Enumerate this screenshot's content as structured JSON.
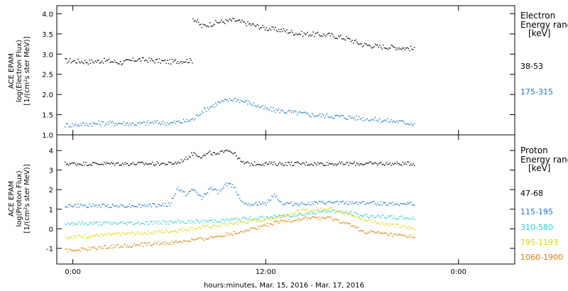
{
  "chart_data": [
    {
      "type": "scatter",
      "panel": "electron",
      "ylabel_lines": [
        "ACE EPAM",
        "log(Electron Flux)",
        "[1/(cm²s ster MeV)]"
      ],
      "ylim": [
        1.0,
        4.2
      ],
      "yticks": [
        "1.0",
        "1.5",
        "2.0",
        "2.5",
        "3.0",
        "3.5",
        "4.0"
      ],
      "yticks_values": [
        1.0,
        1.5,
        2.0,
        2.5,
        3.0,
        3.5,
        4.0
      ],
      "legend": {
        "lines": [
          "Electron",
          "Energy ranges",
          "[keV]"
        ]
      },
      "series": [
        {
          "name": "38-53",
          "color": "#000000",
          "x_hours": [
            -0.5,
            1,
            2,
            3,
            4,
            5,
            6,
            7,
            7.4,
            7.45,
            8,
            9,
            10,
            11,
            12,
            13,
            14,
            15,
            16,
            17,
            18,
            19,
            20,
            21,
            21.3
          ],
          "y": [
            2.85,
            2.82,
            2.85,
            2.8,
            2.88,
            2.85,
            2.82,
            2.85,
            2.85,
            3.9,
            3.7,
            3.8,
            3.85,
            3.75,
            3.65,
            3.6,
            3.52,
            3.5,
            3.48,
            3.4,
            3.25,
            3.2,
            3.18,
            3.15,
            3.12
          ]
        },
        {
          "name": "175-315",
          "color": "#1f77d0",
          "x_hours": [
            -0.5,
            1,
            2,
            3,
            4,
            5,
            6,
            7,
            7.5,
            8,
            9,
            10,
            11,
            12,
            13,
            14,
            15,
            16,
            17,
            18,
            19,
            20,
            21,
            21.3
          ],
          "y": [
            1.25,
            1.28,
            1.3,
            1.3,
            1.28,
            1.32,
            1.3,
            1.35,
            1.4,
            1.6,
            1.8,
            1.9,
            1.8,
            1.65,
            1.6,
            1.55,
            1.5,
            1.48,
            1.45,
            1.42,
            1.38,
            1.35,
            1.3,
            1.3
          ]
        }
      ]
    },
    {
      "type": "scatter",
      "panel": "proton",
      "xlabel": "hours:minutes, Mar. 15, 2016 - Mar. 17, 2016",
      "ylabel_lines": [
        "ACE EPAM",
        "log(Proton Flux)",
        "[1/(cm²s ster MeV)]"
      ],
      "ylim": [
        -1.8,
        4.8
      ],
      "yticks": [
        "-1",
        "0",
        "1",
        "2",
        "3",
        "4"
      ],
      "yticks_values": [
        -1,
        0,
        1,
        2,
        3,
        4
      ],
      "xlim": [
        -1,
        27.5
      ],
      "xticks": [
        "0:00",
        "12:00",
        "0:00"
      ],
      "xticks_values": [
        0,
        12,
        24
      ],
      "legend": {
        "lines": [
          "Proton",
          "Energy ranges",
          "[keV]"
        ]
      },
      "series": [
        {
          "name": "47-68",
          "color": "#000000",
          "x_hours": [
            -0.5,
            2,
            4,
            6,
            6.5,
            7,
            7.5,
            8,
            8.5,
            9,
            9.5,
            10,
            10.5,
            11,
            12,
            14,
            16,
            18,
            20,
            21.3
          ],
          "y": [
            3.35,
            3.35,
            3.35,
            3.35,
            3.4,
            3.6,
            3.9,
            3.7,
            3.9,
            3.8,
            4.1,
            3.9,
            3.4,
            3.35,
            3.35,
            3.35,
            3.35,
            3.35,
            3.35,
            3.35
          ]
        },
        {
          "name": "115-195",
          "color": "#1f77d0",
          "x_hours": [
            -0.5,
            2,
            4,
            6,
            6.5,
            7,
            7.5,
            8,
            8.5,
            9,
            9.5,
            10,
            10.5,
            11,
            12,
            12.5,
            13,
            14,
            16,
            18,
            20,
            21.3
          ],
          "y": [
            1.2,
            1.2,
            1.2,
            1.25,
            2.1,
            1.8,
            2.0,
            1.6,
            2.1,
            1.9,
            2.3,
            2.2,
            1.4,
            1.3,
            1.3,
            1.8,
            1.3,
            1.3,
            1.35,
            1.35,
            1.3,
            1.3
          ]
        },
        {
          "name": "310-580",
          "color": "#22d3d3",
          "x_hours": [
            -0.5,
            2,
            4,
            6,
            8,
            10,
            12,
            14,
            15,
            16,
            17,
            18,
            20,
            21.3
          ],
          "y": [
            0.3,
            0.3,
            0.32,
            0.35,
            0.4,
            0.5,
            0.6,
            0.75,
            0.85,
            0.95,
            0.85,
            0.7,
            0.6,
            0.55
          ]
        },
        {
          "name": "795-1193",
          "color": "#d9d900",
          "x_hours": [
            -0.5,
            2,
            4,
            6,
            8,
            10,
            12,
            13,
            14,
            15,
            16,
            17,
            18,
            20,
            21.3
          ],
          "y": [
            -0.4,
            -0.3,
            -0.2,
            -0.1,
            0.1,
            0.3,
            0.5,
            0.7,
            0.9,
            1.0,
            1.1,
            0.8,
            0.5,
            0.2,
            0.0
          ]
        },
        {
          "name": "1060-1900",
          "color": "#e07b00",
          "x_hours": [
            -0.5,
            1,
            2,
            4,
            6,
            8,
            10,
            12,
            13,
            14,
            15,
            16,
            17,
            18,
            20,
            21.3
          ],
          "y": [
            -1.1,
            -1.0,
            -0.9,
            -0.8,
            -0.7,
            -0.5,
            -0.2,
            0.2,
            0.4,
            0.5,
            0.6,
            0.55,
            0.3,
            -0.1,
            -0.3,
            -0.4
          ]
        }
      ]
    }
  ]
}
